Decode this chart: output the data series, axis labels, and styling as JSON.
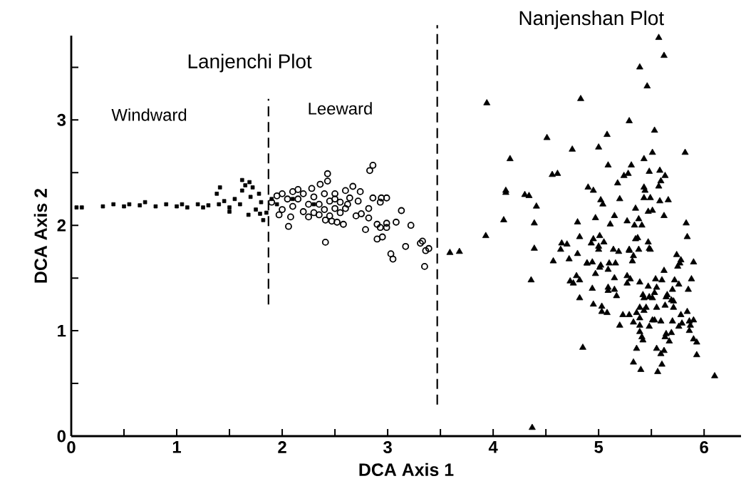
{
  "chart_data": {
    "type": "scatter",
    "xlabel": "DCA Axis 1",
    "ylabel": "DCA Axis 2",
    "xlim": [
      0,
      6.35
    ],
    "ylim": [
      0,
      3.8
    ],
    "xticks": [
      0,
      {
        "value": 0.5,
        "label": null
      },
      1,
      {
        "value": 1.5,
        "label": null
      },
      2,
      {
        "value": 2.5,
        "label": null
      },
      3,
      {
        "value": 3.5,
        "label": null
      },
      4,
      {
        "value": 4.5,
        "label": null
      },
      5,
      {
        "value": 5.5,
        "label": null
      },
      6
    ],
    "yticks": [
      0,
      {
        "value": 0.5,
        "label": null
      },
      1,
      {
        "value": 1.5,
        "label": null
      },
      2,
      {
        "value": 2.5,
        "label": null
      },
      3,
      {
        "value": 3.5,
        "label": null
      }
    ],
    "annotations": [
      "Lanjenchi Plot",
      "Windward",
      "Leeward",
      "Nanjenshan Plot"
    ],
    "ref_lines": [
      {
        "axis": "x",
        "value": 1.87,
        "line_style": "dashed"
      },
      {
        "axis": "x",
        "value": 3.47,
        "line_style": "dashed"
      }
    ],
    "series": [
      {
        "color": "#000000",
        "marker": "square",
        "x": [
          0.05,
          0.1,
          0.3,
          0.4,
          0.5,
          0.55,
          0.65,
          0.7,
          0.8,
          0.9,
          1.0,
          1.05,
          1.1,
          1.2,
          1.25,
          1.3,
          1.38,
          1.4,
          1.41,
          1.45,
          1.5,
          1.5,
          1.55,
          1.6,
          1.62,
          1.62,
          1.65,
          1.68,
          1.69,
          1.7,
          1.72,
          1.75,
          1.78,
          1.79,
          1.8,
          1.82,
          1.85,
          1.9,
          1.95,
          2.1,
          2.3
        ],
        "values": [
          2.17,
          2.17,
          2.18,
          2.2,
          2.18,
          2.2,
          2.19,
          2.22,
          2.18,
          2.2,
          2.18,
          2.2,
          2.17,
          2.2,
          2.17,
          2.19,
          2.3,
          2.2,
          2.36,
          2.23,
          2.17,
          2.13,
          2.25,
          2.2,
          2.33,
          2.43,
          2.38,
          2.1,
          2.41,
          2.27,
          2.36,
          2.15,
          2.3,
          2.11,
          2.22,
          2.05,
          2.12,
          2.25,
          2.2,
          2.25,
          2.2
        ]
      },
      {
        "color": "#000000",
        "marker": "circle",
        "x": [
          1.9,
          1.95,
          1.97,
          2.0,
          2.0,
          2.05,
          2.06,
          2.08,
          2.1,
          2.1,
          2.15,
          2.15,
          2.2,
          2.2,
          2.25,
          2.25,
          2.28,
          2.3,
          2.3,
          2.35,
          2.35,
          2.36,
          2.4,
          2.4,
          2.41,
          2.41,
          2.43,
          2.43,
          2.45,
          2.45,
          2.47,
          2.5,
          2.5,
          2.5,
          2.52,
          2.55,
          2.55,
          2.58,
          2.6,
          2.6,
          2.62,
          2.64,
          2.67,
          2.7,
          2.72,
          2.74,
          2.75,
          2.79,
          2.82,
          2.82,
          2.83,
          2.86,
          2.86,
          2.9,
          2.9,
          2.93,
          2.93,
          2.94,
          2.95,
          2.99,
          2.99,
          2.99,
          3.03,
          3.05,
          3.08,
          3.13,
          3.17,
          3.22,
          3.31,
          3.33,
          3.35,
          3.36,
          3.39
        ],
        "values": [
          2.22,
          2.28,
          2.1,
          2.15,
          2.3,
          2.25,
          1.99,
          2.08,
          2.18,
          2.32,
          2.25,
          2.34,
          2.13,
          2.3,
          2.2,
          2.08,
          2.35,
          2.12,
          2.27,
          2.2,
          2.1,
          2.39,
          2.15,
          2.3,
          2.05,
          1.84,
          2.49,
          2.42,
          2.23,
          2.09,
          2.04,
          2.16,
          2.3,
          2.25,
          2.03,
          2.22,
          2.12,
          2.01,
          2.33,
          2.16,
          2.2,
          2.26,
          2.37,
          2.09,
          2.23,
          2.32,
          2.11,
          1.96,
          2.16,
          2.07,
          2.52,
          2.57,
          2.26,
          2.01,
          1.87,
          2.22,
          1.98,
          2.26,
          1.89,
          2.26,
          2.02,
          1.98,
          1.73,
          1.68,
          2.03,
          2.14,
          1.8,
          2.0,
          1.83,
          1.85,
          1.61,
          1.76,
          1.78
        ]
      },
      {
        "color": "#000000",
        "marker": "triangle",
        "x": [
          3.59,
          3.68,
          3.94,
          3.93,
          4.1,
          4.12,
          4.12,
          4.16,
          4.3,
          4.34,
          4.41,
          4.39,
          4.39,
          4.36,
          4.51,
          4.56,
          4.61,
          4.75,
          4.83,
          4.9,
          4.8,
          4.82,
          4.65,
          4.7,
          4.64,
          4.8,
          4.72,
          4.57,
          4.89,
          4.79,
          4.73,
          4.76,
          4.82,
          4.82,
          4.85,
          4.37,
          5.57,
          5.62,
          5.39,
          5.46,
          5.29,
          5.53,
          5.08,
          5.0,
          5.51,
          5.82,
          5.43,
          5.09,
          5.31,
          5.28,
          5.24,
          5.48,
          5.58,
          5.63,
          5.18,
          4.95,
          5.43,
          5.44,
          5.57,
          5.59,
          5.2,
          5.02,
          5.04,
          5.43,
          5.49,
          5.58,
          5.66,
          5.35,
          5.47,
          5.51,
          5.62,
          4.97,
          5.15,
          5.27,
          5.11,
          5.34,
          5.41,
          5.38,
          5.83,
          5.84,
          4.95,
          4.93,
          5.0,
          5.01,
          5.05,
          5.0,
          5.14,
          5.19,
          5.29,
          5.29,
          5.38,
          5.35,
          5.37,
          5.47,
          5.49,
          5.48,
          5.33,
          5.32,
          5.74,
          5.78,
          5.75,
          5.77,
          5.9,
          4.89,
          4.94,
          5.01,
          5.02,
          5.1,
          5.16,
          5.09,
          4.97,
          5.15,
          5.27,
          5.27,
          5.3,
          5.39,
          5.62,
          5.54,
          5.6,
          5.72,
          5.76,
          5.88,
          4.94,
          5.09,
          5.09,
          5.15,
          5.17,
          5.47,
          5.42,
          5.43,
          5.48,
          5.51,
          5.53,
          5.55,
          5.65,
          5.64,
          5.7,
          5.69,
          5.71,
          5.85,
          4.95,
          5.03,
          5.03,
          5.08,
          5.23,
          5.29,
          5.36,
          5.39,
          5.45,
          5.43,
          5.55,
          5.63,
          5.71,
          5.78,
          5.84,
          5.2,
          5.33,
          5.39,
          5.39,
          5.48,
          5.51,
          5.53,
          5.59,
          5.7,
          5.76,
          5.79,
          5.86,
          5.87,
          5.86,
          5.9,
          5.39,
          5.41,
          5.42,
          5.64,
          5.63,
          5.67,
          5.69,
          5.9,
          5.93,
          5.93,
          5.36,
          5.55,
          5.59,
          5.62,
          5.33,
          5.6,
          5.4,
          5.56,
          6.1
        ],
        "values": [
          1.74,
          1.75,
          3.16,
          1.9,
          2.05,
          2.33,
          2.31,
          2.63,
          2.29,
          2.28,
          2.18,
          2.02,
          1.78,
          1.48,
          2.83,
          2.48,
          2.49,
          2.72,
          3.2,
          2.36,
          2.03,
          1.89,
          1.83,
          1.82,
          1.77,
          1.73,
          1.68,
          1.66,
          1.64,
          1.52,
          1.47,
          1.45,
          1.48,
          1.31,
          0.84,
          0.08,
          3.78,
          3.61,
          3.5,
          3.32,
          2.99,
          2.9,
          2.86,
          2.74,
          2.69,
          2.69,
          2.63,
          2.57,
          2.57,
          2.49,
          2.47,
          2.51,
          2.52,
          2.47,
          2.4,
          2.33,
          2.36,
          2.33,
          2.37,
          2.42,
          2.25,
          2.24,
          2.2,
          2.26,
          2.26,
          2.23,
          2.24,
          2.16,
          2.13,
          2.14,
          2.09,
          2.07,
          2.09,
          2.04,
          2.01,
          2.0,
          2.0,
          2.06,
          2.02,
          1.89,
          1.87,
          1.83,
          1.8,
          1.9,
          1.84,
          1.77,
          1.77,
          1.75,
          1.76,
          1.77,
          1.77,
          1.87,
          1.88,
          1.84,
          1.77,
          1.78,
          1.71,
          1.66,
          1.72,
          1.67,
          1.61,
          1.64,
          1.65,
          1.64,
          1.65,
          1.6,
          1.62,
          1.64,
          1.64,
          1.58,
          1.54,
          1.5,
          1.52,
          1.45,
          1.49,
          1.46,
          1.57,
          1.49,
          1.48,
          1.48,
          1.44,
          1.49,
          1.4,
          1.41,
          1.38,
          1.39,
          1.33,
          1.42,
          1.34,
          1.31,
          1.32,
          1.31,
          1.36,
          1.41,
          1.34,
          1.32,
          1.39,
          1.29,
          1.28,
          1.39,
          1.25,
          1.23,
          1.18,
          1.17,
          1.15,
          1.15,
          1.17,
          1.22,
          1.22,
          1.19,
          1.22,
          1.24,
          1.22,
          1.15,
          1.18,
          1.05,
          1.08,
          1.12,
          1.05,
          1.04,
          1.1,
          1.1,
          1.09,
          1.09,
          1.04,
          1.07,
          1.09,
          1.05,
          1.0,
          1.1,
          0.99,
          0.94,
          0.91,
          0.97,
          0.94,
          0.9,
          0.98,
          0.92,
          0.89,
          0.77,
          0.83,
          0.83,
          0.78,
          0.81,
          0.7,
          0.68,
          0.63,
          0.61,
          0.57
        ]
      }
    ]
  }
}
